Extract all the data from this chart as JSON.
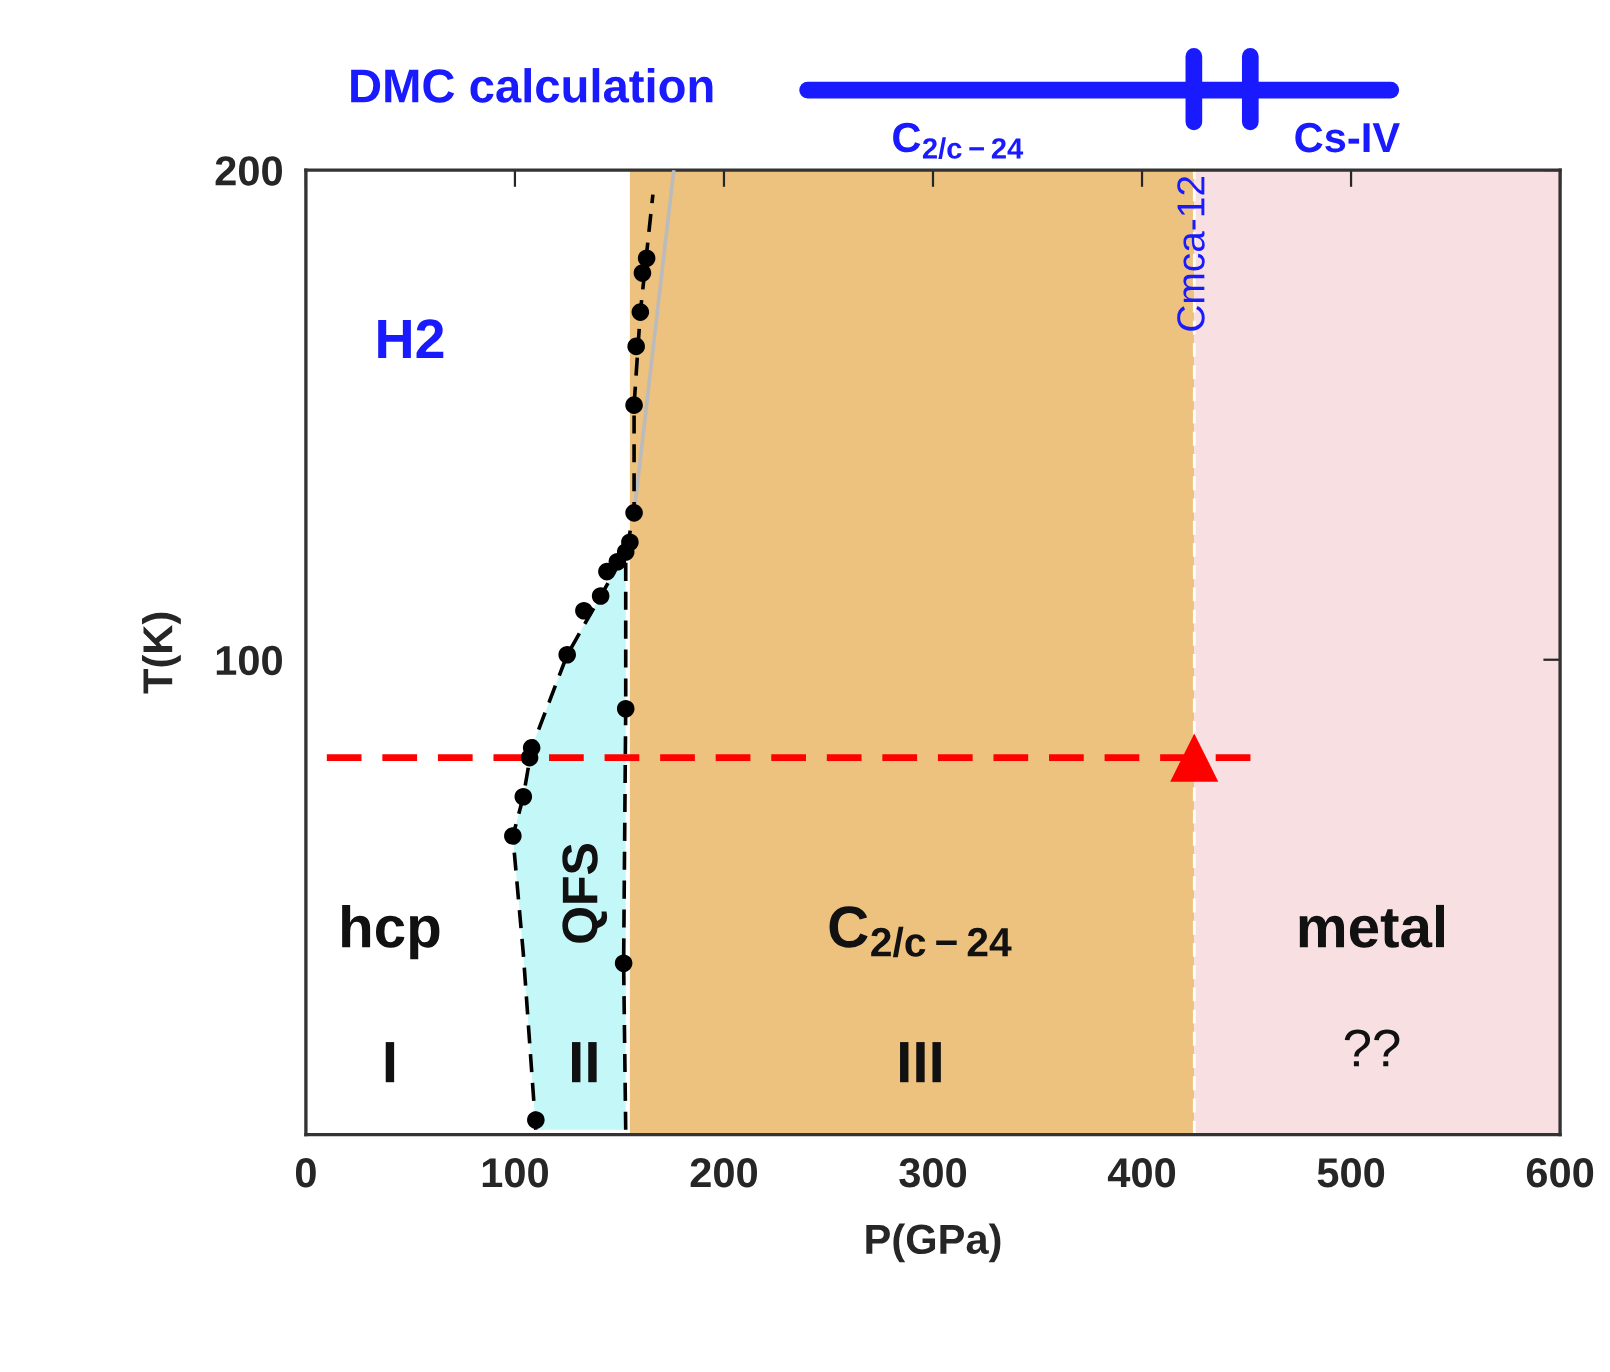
{
  "chart_data": {
    "type": "scatter",
    "xlabel": "P(GPa)",
    "ylabel": "T(K)",
    "xlim": [
      0,
      600
    ],
    "ylim": [
      3,
      200
    ],
    "xticks": [
      0,
      100,
      200,
      300,
      400,
      500,
      600
    ],
    "yticks": [
      100,
      200
    ],
    "grid": false,
    "legend": false,
    "bands": [
      {
        "axis": "x",
        "from": 155,
        "to": 425,
        "color": "#ecc27e"
      },
      {
        "axis": "x",
        "from": 425,
        "to": 600,
        "color": "#f7dfe2"
      }
    ],
    "ref_lines": [
      {
        "axis": "x",
        "value": 425,
        "label": "Cmca-12",
        "color": "#ffffff",
        "line_style": "dashed"
      }
    ],
    "series": [
      {
        "type": "area",
        "color": "#c4f8f8",
        "x": [
          110,
          104,
          99,
          104,
          108,
          125,
          141,
          153,
          153,
          153,
          153
        ],
        "values": [
          4,
          40,
          64,
          72,
          82,
          101,
          113,
          122,
          90,
          38,
          4
        ]
      },
      {
        "type": "line",
        "color": "#bbbbbb",
        "line_style": "solid",
        "x": [
          157,
          176
        ],
        "values": [
          130,
          200
        ]
      },
      {
        "type": "line",
        "color": "#000000",
        "line_style": "dashed",
        "x": [
          110,
          104,
          99,
          104,
          108,
          125,
          141,
          153,
          157,
          157,
          160,
          166
        ],
        "values": [
          4,
          40,
          64,
          72,
          82,
          101,
          113,
          122,
          130,
          152,
          171,
          195
        ]
      },
      {
        "type": "line",
        "color": "#000000",
        "line_style": "dashed",
        "x": [
          153,
          152,
          153,
          153
        ],
        "values": [
          4,
          38,
          90,
          122
        ]
      },
      {
        "type": "line",
        "color": "#ff0000",
        "line_style": "dashed",
        "x": [
          10,
          452
        ],
        "values": [
          80,
          80
        ]
      },
      {
        "color": "#000000",
        "marker": "circle",
        "x": [
          163,
          161,
          160,
          158,
          157,
          157,
          155,
          153,
          149,
          144,
          141,
          133,
          125,
          153,
          108,
          107,
          104,
          99,
          152,
          110
        ],
        "values": [
          182,
          179,
          171,
          164,
          152,
          130,
          124,
          122,
          120,
          118,
          113,
          110,
          101,
          90,
          82,
          80,
          72,
          64,
          38,
          6
        ]
      },
      {
        "color": "#ff0000",
        "marker": "triangle",
        "x": [
          425
        ],
        "values": [
          80
        ]
      }
    ],
    "annotations": [
      "DMC calculation",
      "C$_{2/c−24}$",
      "Cs-IV",
      "H2",
      "hcp",
      "I",
      "QFS",
      "II",
      "C$_{2/c−24}$",
      "III",
      "metal",
      "??"
    ]
  }
}
